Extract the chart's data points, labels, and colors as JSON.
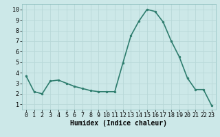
{
  "x": [
    0,
    1,
    2,
    3,
    4,
    5,
    6,
    7,
    8,
    9,
    10,
    11,
    12,
    13,
    14,
    15,
    16,
    17,
    18,
    19,
    20,
    21,
    22,
    23
  ],
  "y": [
    3.7,
    2.2,
    2.0,
    3.2,
    3.3,
    3.0,
    2.7,
    2.5,
    2.3,
    2.2,
    2.2,
    2.2,
    4.9,
    7.5,
    8.9,
    10.0,
    9.8,
    8.8,
    7.0,
    5.5,
    3.5,
    2.4,
    2.4,
    0.9
  ],
  "line_color": "#2e7d6e",
  "marker": "o",
  "marker_size": 2.0,
  "bg_color": "#cce8e8",
  "grid_color": "#b8d8d8",
  "xlabel": "Humidex (Indice chaleur)",
  "ylim": [
    0.5,
    10.5
  ],
  "xlim": [
    -0.5,
    23.5
  ],
  "yticks": [
    1,
    2,
    3,
    4,
    5,
    6,
    7,
    8,
    9,
    10
  ],
  "xticks": [
    0,
    1,
    2,
    3,
    4,
    5,
    6,
    7,
    8,
    9,
    10,
    11,
    12,
    13,
    14,
    15,
    16,
    17,
    18,
    19,
    20,
    21,
    22,
    23
  ],
  "xlabel_fontsize": 7,
  "tick_fontsize": 6,
  "line_width": 1.2
}
